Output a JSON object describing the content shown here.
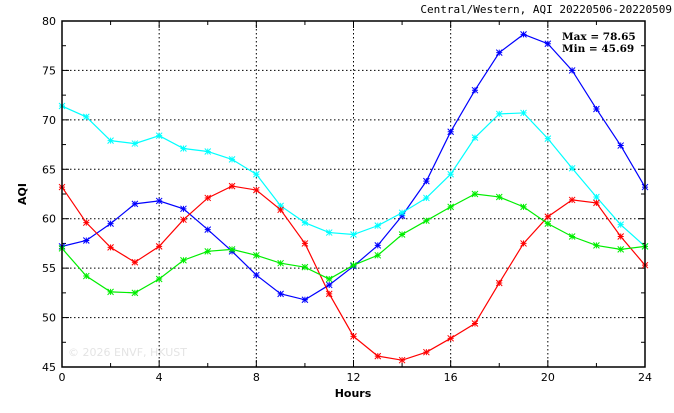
{
  "chart_data": {
    "type": "line",
    "title": "Central/Western, AQI 20220506-20220509",
    "xlabel": "Hours",
    "ylabel": "AQI",
    "xlim": [
      0,
      24
    ],
    "ylim": [
      45,
      80
    ],
    "xticks": [
      "0",
      "4",
      "8",
      "12",
      "16",
      "20",
      "24"
    ],
    "yticks": [
      "45",
      "50",
      "55",
      "60",
      "65",
      "70",
      "75",
      "80"
    ],
    "grid": true,
    "annotations": {
      "max": "Max = 78.65",
      "min": "Min = 45.69"
    },
    "watermark": "© 2026 ENVF, HKUST",
    "x": [
      0,
      1,
      2,
      3,
      4,
      5,
      6,
      7,
      8,
      9,
      10,
      11,
      12,
      13,
      14,
      15,
      16,
      17,
      18,
      19,
      20,
      21,
      22,
      23,
      24
    ],
    "series": [
      {
        "name": "blue",
        "color": "#0000ff",
        "values": [
          57.2,
          57.8,
          59.5,
          61.5,
          61.8,
          61.0,
          58.9,
          56.7,
          54.3,
          52.4,
          51.8,
          53.3,
          55.2,
          57.3,
          60.3,
          63.8,
          68.8,
          73.0,
          76.8,
          78.65,
          77.7,
          75.0,
          71.1,
          67.4,
          63.2
        ]
      },
      {
        "name": "cyan",
        "color": "#00ffff",
        "values": [
          71.4,
          70.3,
          67.9,
          67.6,
          68.4,
          67.1,
          66.8,
          66.0,
          64.5,
          61.3,
          59.6,
          58.6,
          58.4,
          59.3,
          60.6,
          62.1,
          64.5,
          68.2,
          70.6,
          70.7,
          68.1,
          65.1,
          62.2,
          59.4,
          57.2
        ]
      },
      {
        "name": "red",
        "color": "#ff0000",
        "values": [
          63.2,
          59.6,
          57.1,
          55.6,
          57.2,
          59.9,
          62.1,
          63.3,
          62.9,
          60.9,
          57.5,
          52.4,
          48.1,
          46.1,
          45.69,
          46.5,
          47.9,
          49.4,
          53.5,
          57.5,
          60.2,
          61.9,
          61.6,
          58.2,
          55.3
        ]
      },
      {
        "name": "green",
        "color": "#00ee00",
        "values": [
          57.0,
          54.2,
          52.6,
          52.5,
          53.9,
          55.8,
          56.7,
          56.9,
          56.3,
          55.5,
          55.1,
          53.9,
          55.3,
          56.3,
          58.4,
          59.8,
          61.2,
          62.5,
          62.2,
          61.2,
          59.5,
          58.2,
          57.3,
          56.9,
          57.2
        ]
      }
    ]
  }
}
